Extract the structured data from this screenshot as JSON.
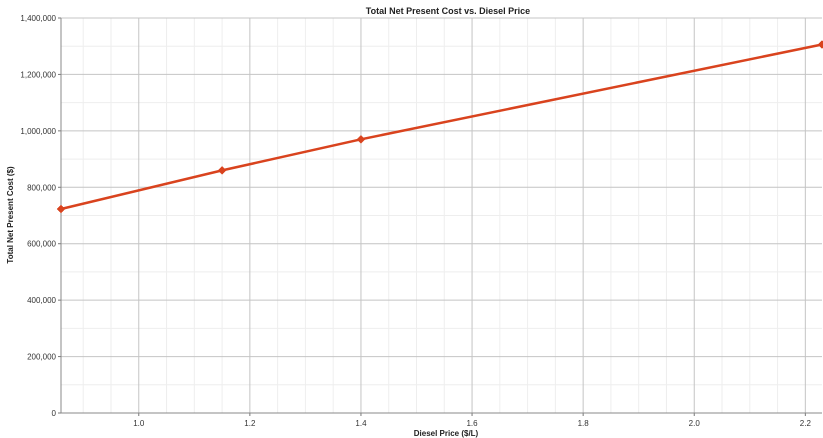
{
  "chart_data": {
    "type": "line",
    "title": "Total Net Present Cost vs. Diesel Price",
    "xlabel": "Diesel Price ($/L)",
    "ylabel": "Total Net Present Cost ($)",
    "xlim": [
      0.86,
      2.23
    ],
    "ylim": [
      0,
      1400000
    ],
    "x_ticks": [
      1.0,
      1.2,
      1.4,
      1.6,
      1.8,
      2.0,
      2.2
    ],
    "x_tick_labels": [
      "1.0",
      "1.2",
      "1.4",
      "1.6",
      "1.8",
      "2.0",
      "2.2"
    ],
    "y_ticks": [
      0,
      200000,
      400000,
      600000,
      800000,
      1000000,
      1200000,
      1400000
    ],
    "y_tick_labels": [
      "0",
      "200,000",
      "400,000",
      "600,000",
      "800,000",
      "1,000,000",
      "1,200,000",
      "1,400,000"
    ],
    "grid": true,
    "series": [
      {
        "color": "#d9431e",
        "marker": "diamond",
        "x": [
          0.86,
          1.15,
          1.4,
          2.23
        ],
        "y": [
          723000,
          860000,
          970000,
          1306000
        ]
      }
    ]
  }
}
